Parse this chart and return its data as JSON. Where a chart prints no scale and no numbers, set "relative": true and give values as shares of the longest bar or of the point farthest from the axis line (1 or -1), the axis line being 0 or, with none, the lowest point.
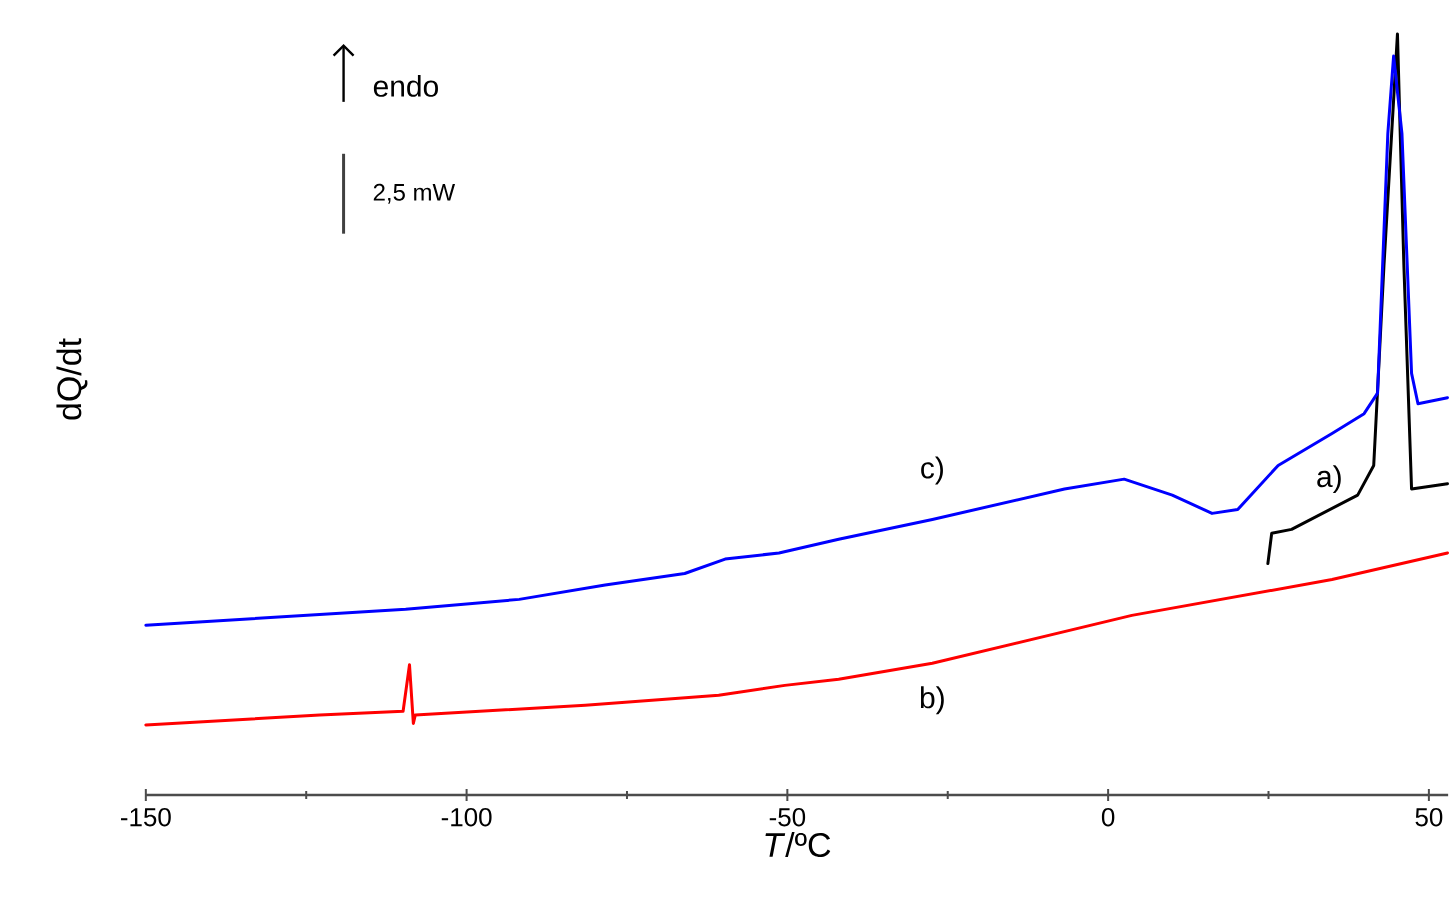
{
  "chart_data": {
    "type": "line",
    "xlabel": "*T*/ºC",
    "ylabel": "dQ/dt",
    "relative": true,
    "xlim": [
      -150,
      53
    ],
    "xticks": [
      -150,
      {
        "value": -125,
        "label": null
      },
      -100,
      {
        "value": -75,
        "label": null
      },
      -50,
      {
        "value": -25,
        "label": null
      },
      0,
      {
        "value": 25,
        "label": null
      },
      50
    ],
    "annotations": [
      "endo",
      "2,5 mW"
    ],
    "series": [
      {
        "name": "a)",
        "color": "#000000",
        "x": [
          24.9,
          25.5,
          28.6,
          38.9,
          41.4,
          43,
          45.1,
          46.1,
          47.3,
          52.9
        ],
        "values": [
          0.304,
          0.344,
          0.349,
          0.394,
          0.433,
          0.696,
          1,
          0.696,
          0.402,
          0.409
        ]
      },
      {
        "name": "b)",
        "color": "#ff0000",
        "x": [
          -150,
          -122.9,
          -109.9,
          -108.9,
          -108.3,
          -108,
          -81.5,
          -60.7,
          -50.4,
          -42,
          -27.4,
          3.7,
          34.9,
          52.9
        ],
        "values": [
          0.092,
          0.105,
          0.11,
          0.171,
          0.094,
          0.105,
          0.118,
          0.131,
          0.144,
          0.152,
          0.173,
          0.236,
          0.283,
          0.318
        ]
      },
      {
        "name": "c)",
        "color": "#0000ff",
        "x": [
          -150,
          -109.5,
          -91.8,
          -78.4,
          -66,
          -59.7,
          -51.3,
          -42,
          -27.4,
          -6.8,
          2.5,
          10,
          16.2,
          20.2,
          26.5,
          34.9,
          39.9,
          42,
          43.6,
          44.5,
          45.8,
          47.3,
          48.3,
          52.9
        ],
        "values": [
          0.223,
          0.244,
          0.257,
          0.276,
          0.291,
          0.31,
          0.318,
          0.336,
          0.362,
          0.402,
          0.415,
          0.394,
          0.37,
          0.375,
          0.433,
          0.475,
          0.501,
          0.528,
          0.869,
          0.971,
          0.869,
          0.554,
          0.514,
          0.522
        ]
      }
    ]
  }
}
